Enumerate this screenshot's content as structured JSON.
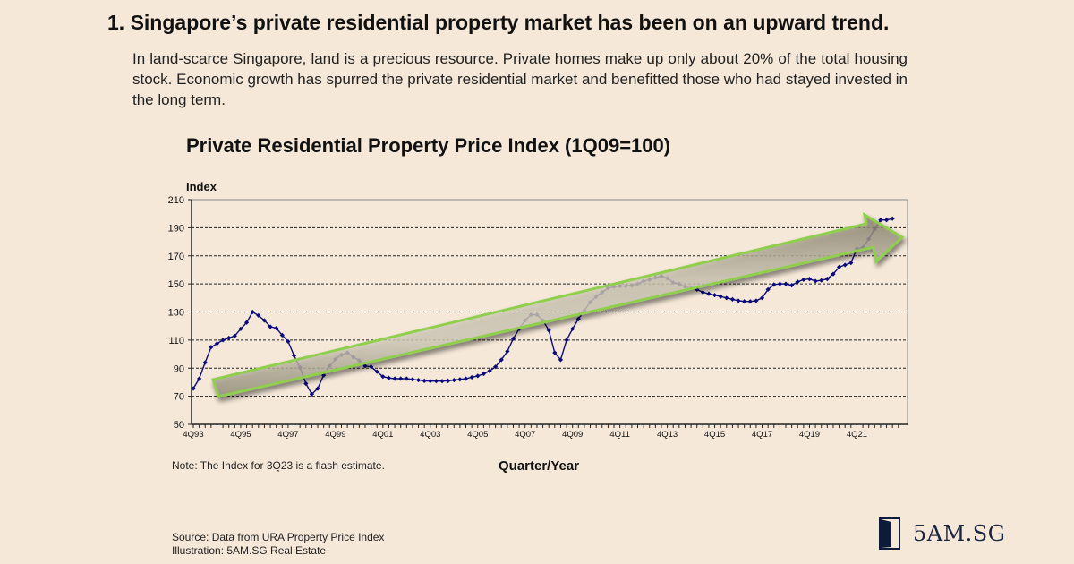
{
  "heading": "1. Singapore’s private residential property market has been on an upward trend.",
  "intro": "In land-scarce Singapore, land is a precious resource. Private homes make up only about 20% of the total housing stock. Economic growth has spurred the private residential market and benefitted those who had stayed invested in the long term.",
  "note": "Note: The Index for 3Q23 is a flash estimate.",
  "source_lines": [
    "Source: Data from URA Property Price Index",
    "Illustration: 5AM.SG Real Estate"
  ],
  "logo": {
    "text": "5AM.SG",
    "icon": "door-icon"
  },
  "colors": {
    "background": "#f5e8d8",
    "series": "#0b0b7a",
    "trend_arrow_fill": "#c9c2ae",
    "trend_arrow_stroke": "#8fcf4e"
  },
  "chart_data": {
    "type": "line",
    "title": "Private Residential Property Price Index (1Q09=100)",
    "ylabel": "Index",
    "xlabel": "Quarter/Year",
    "ylim": [
      50,
      210
    ],
    "yticks": [
      50,
      70,
      90,
      110,
      130,
      150,
      170,
      190,
      210
    ],
    "xtick_labels": [
      "4Q93",
      "4Q95",
      "4Q97",
      "4Q99",
      "4Q01",
      "4Q03",
      "4Q05",
      "4Q07",
      "4Q09",
      "4Q11",
      "4Q13",
      "4Q15",
      "4Q17",
      "4Q19",
      "4Q21"
    ],
    "grid": "horizontal-dashed",
    "annotation": "upward trend arrow",
    "x_start": "4Q93",
    "x_end": "3Q23",
    "series": [
      {
        "name": "Private Residential Property Price Index",
        "values": [
          75.5,
          82.5,
          94,
          105,
          107.5,
          110,
          111.5,
          113,
          118,
          122.5,
          130,
          127.5,
          124,
          119.5,
          118.5,
          113.5,
          109,
          99,
          90.5,
          79,
          71.5,
          75.5,
          85,
          91.5,
          96.5,
          99.5,
          101,
          98,
          95.5,
          91.5,
          91,
          87.5,
          84,
          83,
          82.5,
          82.5,
          82.5,
          82,
          81.5,
          81,
          80.8,
          80.8,
          80.8,
          81,
          81.5,
          82,
          82.5,
          83.5,
          84.5,
          86,
          88,
          91,
          96,
          102,
          111,
          118,
          124,
          128,
          128,
          124,
          117,
          101,
          96,
          110,
          118,
          125,
          131,
          137,
          141,
          144,
          147,
          148,
          148.5,
          148.5,
          149,
          150,
          152,
          153,
          154.5,
          155.5,
          154,
          151,
          150,
          148,
          147,
          146,
          144,
          143,
          142,
          141,
          140,
          139,
          138,
          137.5,
          137.5,
          138,
          140,
          146,
          149.5,
          150,
          150,
          149,
          151.5,
          153,
          153.5,
          152,
          152.5,
          153.5,
          157,
          162,
          163.5,
          165,
          175,
          176,
          182,
          189,
          195.5,
          195.5,
          196.5
        ]
      }
    ]
  }
}
